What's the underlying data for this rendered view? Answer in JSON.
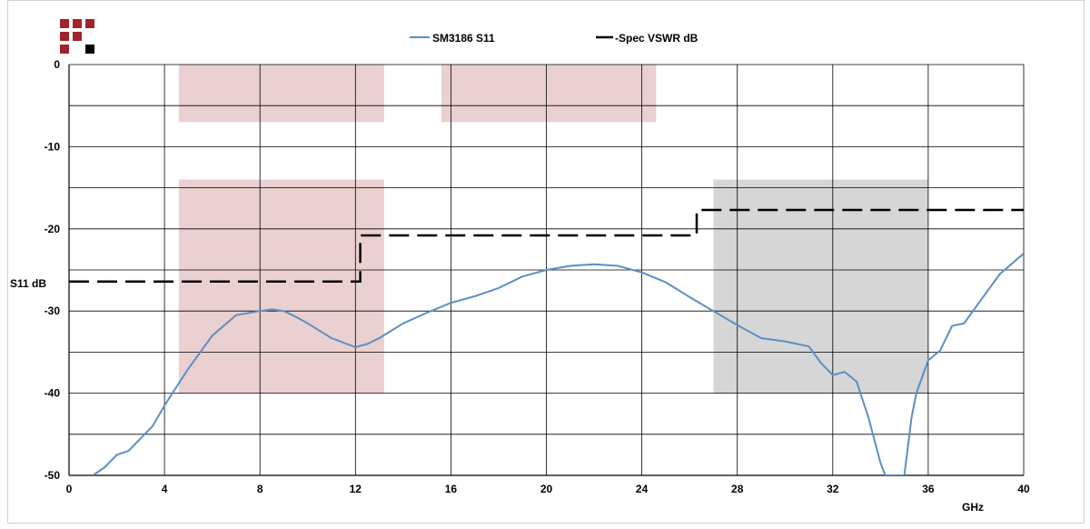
{
  "chart_data": {
    "type": "line",
    "xlabel": "GHz",
    "ylabel": "S11 dB",
    "xlim": [
      0,
      40
    ],
    "ylim": [
      -50,
      0
    ],
    "x_ticks": [
      "0",
      "4",
      "8",
      "12",
      "16",
      "20",
      "24",
      "28",
      "32",
      "36",
      "40"
    ],
    "y_ticks": [
      "0",
      "-10",
      "-20",
      "-30",
      "-40",
      "-50"
    ],
    "grid": true,
    "legend_position": "top-center",
    "colors": {
      "s11": "#5b8ec6",
      "spec": "#000000",
      "band": "#ead0d0",
      "band_gray": "#d6d6d6",
      "logo": "#a0242a"
    },
    "bands": [
      {
        "x": [
          4.6,
          13.2
        ],
        "y": [
          -7,
          0
        ],
        "color": "band"
      },
      {
        "x": [
          15.6,
          24.6
        ],
        "y": [
          -7,
          0
        ],
        "color": "band"
      },
      {
        "x": [
          4.6,
          13.2
        ],
        "y": [
          -40,
          -14
        ],
        "color": "band"
      },
      {
        "x": [
          27,
          36
        ],
        "y": [
          -40,
          -14
        ],
        "color": "band_gray"
      }
    ],
    "series": [
      {
        "name": "SM3186 S11",
        "style": "solid",
        "x": [
          1,
          1.5,
          2,
          2.5,
          3,
          3.5,
          4,
          5,
          6,
          7,
          8,
          8.5,
          9,
          9.5,
          10,
          11,
          12,
          12.5,
          13,
          14,
          15,
          16,
          17,
          18,
          19,
          20,
          21,
          22,
          23,
          24,
          25,
          26,
          27,
          28,
          29,
          30,
          31,
          31.5,
          32,
          32.5,
          33,
          33.5,
          34,
          34.2,
          34.5,
          35,
          35.3,
          35.5,
          36,
          36.5,
          37,
          37.5,
          38,
          39,
          40
        ],
        "y": [
          -50,
          -49,
          -47.5,
          -47,
          -45.5,
          -44,
          -41.5,
          -37,
          -33,
          -30.5,
          -30,
          -29.8,
          -30,
          -30.7,
          -31.5,
          -33.3,
          -34.4,
          -34,
          -33.3,
          -31.5,
          -30.2,
          -29,
          -28.2,
          -27.2,
          -25.8,
          -25,
          -24.5,
          -24.3,
          -24.5,
          -25.3,
          -26.5,
          -28.3,
          -30,
          -31.7,
          -33.3,
          -33.7,
          -34.3,
          -36.3,
          -37.8,
          -37.4,
          -38.6,
          -43,
          -48.5,
          -50,
          -50,
          -50,
          -43,
          -40,
          -36,
          -34.8,
          -31.8,
          -31.5,
          -29.5,
          -25.5,
          -23
        ]
      },
      {
        "name": "-Spec VSWR dB",
        "style": "dashed",
        "x": [
          0,
          12.2,
          12.2,
          26.3,
          26.3,
          40
        ],
        "y": [
          -26.4,
          -26.4,
          -20.8,
          -20.8,
          -17.7,
          -17.7
        ]
      }
    ]
  }
}
